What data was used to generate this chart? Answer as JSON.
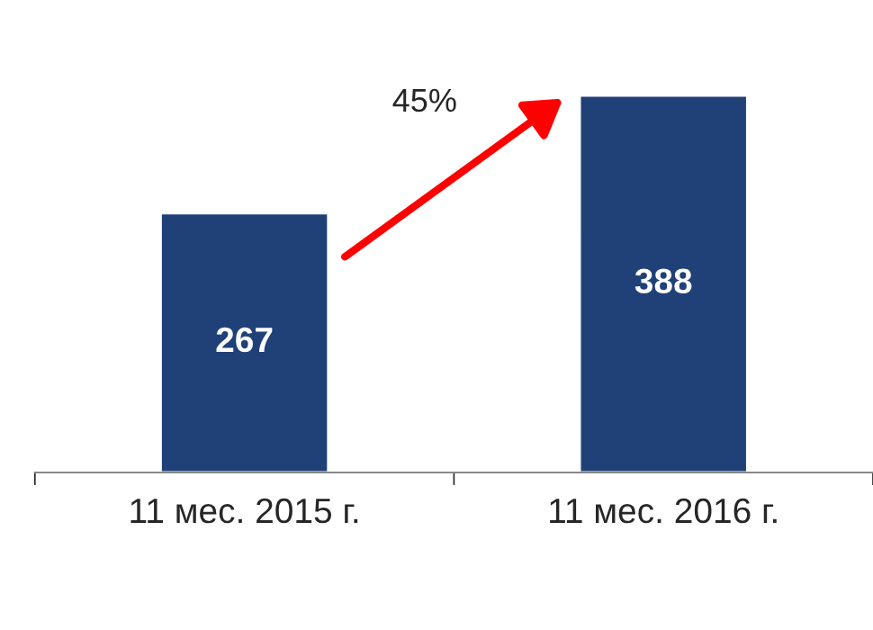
{
  "chart_data": {
    "type": "bar",
    "categories": [
      "11 мес. 2015 г.",
      "11 мес. 2016 г."
    ],
    "values": [
      267,
      388
    ],
    "color": "#1f4178",
    "data_labels": true,
    "annotations": [
      "45%"
    ]
  }
}
